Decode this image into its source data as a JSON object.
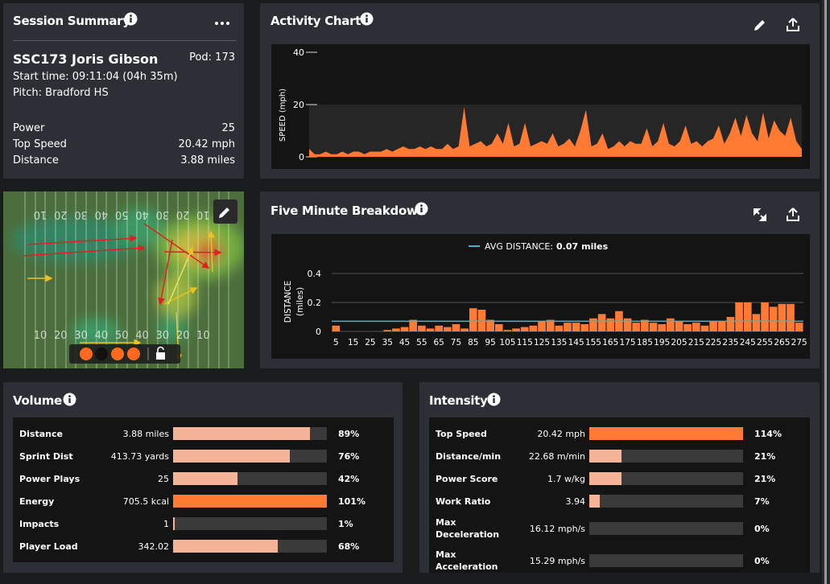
{
  "session_summary": {
    "title": "Session Summary",
    "player": "SSC173 Joris Gibson",
    "pod": "Pod: 173",
    "start_time": "Start time: 09:11:04 (04h 35m)",
    "pitch": "Pitch: Bradford HS",
    "stats": [
      {
        "label": "Power",
        "value": "25"
      },
      {
        "label": "Top Speed",
        "value": "20.42 mph"
      },
      {
        "label": "Distance",
        "value": "3.88 miles"
      }
    ]
  },
  "chart_data": [
    {
      "type": "area",
      "title": "Activity Chart",
      "y_label": "SPEED (mph)",
      "color": "#ff7a33",
      "ylim": [
        0,
        40
      ],
      "yticks": [
        0,
        20,
        40
      ],
      "values": [
        3,
        1,
        1,
        2,
        1,
        1,
        2,
        1,
        2,
        2,
        1,
        2,
        2,
        2,
        3,
        2,
        3,
        4,
        3,
        3,
        4,
        3,
        4,
        3,
        3,
        5,
        3,
        4,
        19,
        4,
        5,
        6,
        4,
        5,
        9,
        5,
        13,
        4,
        5,
        13,
        4,
        5,
        6,
        5,
        9,
        4,
        5,
        7,
        4,
        10,
        18,
        4,
        5,
        9,
        3,
        4,
        6,
        4,
        6,
        5,
        5,
        11,
        4,
        6,
        13,
        5,
        4,
        6,
        12,
        5,
        6,
        4,
        6,
        7,
        12,
        5,
        9,
        15,
        8,
        16,
        9,
        6,
        17,
        7,
        14,
        10,
        8,
        15,
        6,
        3
      ]
    },
    {
      "type": "bar",
      "title": "Five Minute Breakdown",
      "y_label": [
        "DISTANCE",
        "(miles)"
      ],
      "color": "#ff7a33",
      "ylim": [
        0,
        0.4
      ],
      "yticks": [
        0,
        0.2,
        0.4
      ],
      "grid": true,
      "reference_line": {
        "label": "AVG DISTANCE:",
        "value": 0.07,
        "unit": "miles",
        "color": "#3fb8c8"
      },
      "categories": [
        "5",
        null,
        "15",
        null,
        "25",
        null,
        "35",
        null,
        "45",
        null,
        "55",
        null,
        "65",
        null,
        "75",
        null,
        "85",
        null,
        "95",
        null,
        "105",
        null,
        "115",
        null,
        "125",
        null,
        "135",
        null,
        "145",
        null,
        "155",
        null,
        "165",
        null,
        "175",
        null,
        "185",
        null,
        "195",
        null,
        "205",
        null,
        "215",
        null,
        "225",
        null,
        "235",
        null,
        "245",
        null,
        "255",
        null,
        "265",
        null,
        "275"
      ],
      "values": [
        0.04,
        0,
        0,
        0,
        0,
        0,
        0.01,
        0.02,
        0.03,
        0.08,
        0.04,
        0.02,
        0.04,
        0.03,
        0.05,
        0.02,
        0.16,
        0.15,
        0.08,
        0.05,
        0.01,
        0.02,
        0.03,
        0.04,
        0.07,
        0.08,
        0.04,
        0.06,
        0.06,
        0.05,
        0.09,
        0.12,
        0.09,
        0.14,
        0.09,
        0.06,
        0.08,
        0.06,
        0.05,
        0.09,
        0.07,
        0.05,
        0.06,
        0.04,
        0.07,
        0.07,
        0.1,
        0.2,
        0.2,
        0.12,
        0.2,
        0.17,
        0.19,
        0.19,
        0.06
      ]
    }
  ],
  "field": {
    "yard_numbers": [
      "10",
      "20",
      "30",
      "40",
      "50",
      "40",
      "30",
      "20",
      "10"
    ]
  },
  "volume": {
    "title": "Volume",
    "xlim": [
      0,
      100
    ],
    "rows": [
      {
        "name": "Distance",
        "display": "3.88 miles",
        "value": 89,
        "value_label": "89%",
        "color": "#f4b49a"
      },
      {
        "name": "Sprint Dist",
        "display": "413.73 yards",
        "value": 76,
        "value_label": "76%",
        "color": "#f4b49a"
      },
      {
        "name": "Power Plays",
        "display": "25",
        "value": 42,
        "value_label": "42%",
        "color": "#f4b49a"
      },
      {
        "name": "Energy",
        "display": "705.5 kcal",
        "value": 101,
        "value_label": "101%",
        "color": "#ff7a33"
      },
      {
        "name": "Impacts",
        "display": "1",
        "value": 1,
        "value_label": "1%",
        "color": "#f4b49a"
      },
      {
        "name": "Player Load",
        "display": "342.02",
        "value": 68,
        "value_label": "68%",
        "color": "#f4b49a"
      }
    ]
  },
  "intensity": {
    "title": "Intensity",
    "xlim": [
      0,
      100
    ],
    "rows": [
      {
        "name": "Top Speed",
        "display": "20.42 mph",
        "value": 114,
        "value_label": "114%",
        "color": "#ff7a33"
      },
      {
        "name": "Distance/min",
        "display": "22.68 m/min",
        "value": 21,
        "value_label": "21%",
        "color": "#f4b49a"
      },
      {
        "name": "Power Score",
        "display": "1.7 w/kg",
        "value": 21,
        "value_label": "21%",
        "color": "#f4b49a"
      },
      {
        "name": "Work Ratio",
        "display": "3.94",
        "value": 7,
        "value_label": "7%",
        "color": "#f4b49a"
      },
      {
        "name": "Max Deceleration",
        "display": "16.12 mph/s",
        "value": 0,
        "value_label": "0%",
        "color": "#f4b49a"
      },
      {
        "name": "Max Acceleration",
        "display": "15.29 mph/s",
        "value": 0,
        "value_label": "0%",
        "color": "#f4b49a"
      }
    ]
  }
}
